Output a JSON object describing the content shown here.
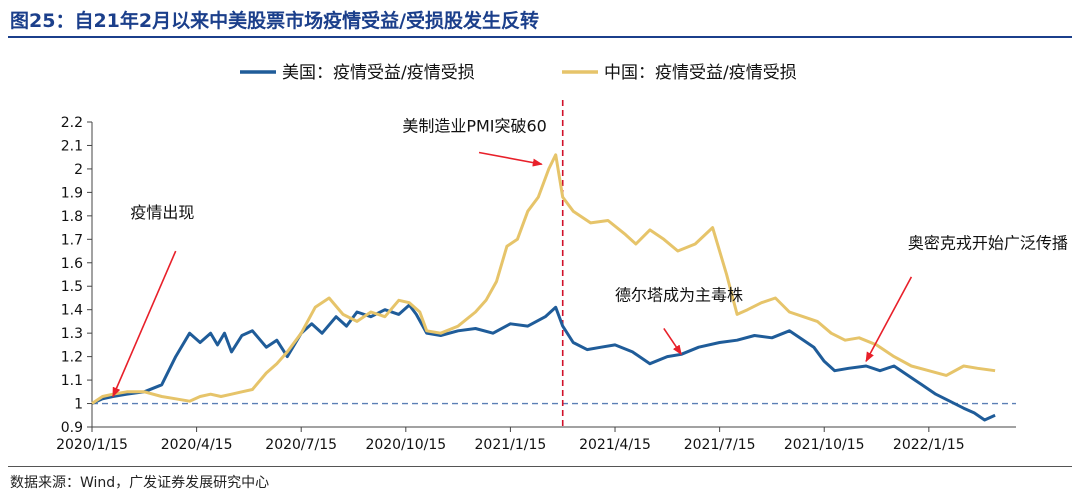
{
  "figure": {
    "title": "图25：自21年2月以来中美股票市场疫情受益/受损股发生反转",
    "source": "数据来源：Wind，广发证券发展研究中心"
  },
  "chart_data": {
    "type": "line",
    "title": "自21年2月以来中美股票市场疫情受益/受损股发生反转",
    "xlabel": "",
    "ylabel": "",
    "ylim": [
      0.9,
      2.2
    ],
    "yticks": [
      0.9,
      1,
      1.1,
      1.2,
      1.3,
      1.4,
      1.5,
      1.6,
      1.7,
      1.8,
      1.9,
      2,
      2.1,
      2.2
    ],
    "ytick_labels": [
      "0.9",
      "1",
      "1.1",
      "1.2",
      "1.3",
      "1.4",
      "1.5",
      "1.6",
      "1.7",
      "1.8",
      "1.9",
      "2",
      "2.1",
      "2.2"
    ],
    "xlim": [
      "2020-01-15",
      "2022-03-31"
    ],
    "xtick_labels": [
      "2020/1/15",
      "2020/4/15",
      "2020/7/15",
      "2020/10/15",
      "2021/1/15",
      "2021/4/15",
      "2021/7/15",
      "2021/10/15",
      "2022/1/15"
    ],
    "xtick_months": [
      0,
      3,
      6,
      9,
      12,
      15,
      18,
      21,
      24
    ],
    "legend_position": "top-center",
    "grid": false,
    "series": [
      {
        "name": "美国：疫情受益/疫情受损",
        "color": "#1f5c99",
        "x_months": [
          0,
          0.3,
          0.6,
          1,
          1.5,
          2,
          2.4,
          2.8,
          3.1,
          3.4,
          3.6,
          3.8,
          4.0,
          4.3,
          4.6,
          5,
          5.3,
          5.6,
          6,
          6.3,
          6.6,
          7,
          7.3,
          7.6,
          8,
          8.4,
          8.8,
          9.1,
          9.3,
          9.6,
          10,
          10.5,
          11,
          11.5,
          12,
          12.5,
          13,
          13.3,
          13.5,
          13.8,
          14.2,
          14.6,
          15,
          15.5,
          16,
          16.5,
          16.9,
          17.4,
          18,
          18.5,
          19,
          19.5,
          20,
          20.3,
          20.7,
          21,
          21.3,
          21.7,
          22.2,
          22.6,
          23,
          23.4,
          23.8,
          24.2,
          24.6,
          25,
          25.3,
          25.6,
          25.9
        ],
        "values": [
          1.0,
          1.02,
          1.03,
          1.04,
          1.05,
          1.08,
          1.2,
          1.3,
          1.26,
          1.3,
          1.25,
          1.3,
          1.22,
          1.29,
          1.31,
          1.24,
          1.27,
          1.2,
          1.3,
          1.34,
          1.3,
          1.37,
          1.33,
          1.39,
          1.37,
          1.4,
          1.38,
          1.42,
          1.38,
          1.3,
          1.29,
          1.31,
          1.32,
          1.3,
          1.34,
          1.33,
          1.37,
          1.41,
          1.33,
          1.26,
          1.23,
          1.24,
          1.25,
          1.22,
          1.17,
          1.2,
          1.21,
          1.24,
          1.26,
          1.27,
          1.29,
          1.28,
          1.31,
          1.28,
          1.24,
          1.18,
          1.14,
          1.15,
          1.16,
          1.14,
          1.16,
          1.12,
          1.08,
          1.04,
          1.01,
          0.98,
          0.96,
          0.93,
          0.95
        ]
      },
      {
        "name": "中国：疫情受益/疫情受损",
        "color": "#e6c46a",
        "x_months": [
          0,
          0.3,
          0.6,
          1,
          1.5,
          2,
          2.4,
          2.8,
          3.1,
          3.4,
          3.7,
          4.0,
          4.3,
          4.6,
          5,
          5.3,
          5.6,
          6,
          6.4,
          6.8,
          7.2,
          7.6,
          8,
          8.4,
          8.8,
          9.1,
          9.4,
          9.6,
          10,
          10.5,
          11,
          11.3,
          11.6,
          11.9,
          12.2,
          12.5,
          12.8,
          13.1,
          13.3,
          13.5,
          13.8,
          14.3,
          14.8,
          15.3,
          15.6,
          16,
          16.4,
          16.8,
          17.3,
          17.8,
          18.2,
          18.5,
          18.8,
          19.2,
          19.6,
          20,
          20.4,
          20.8,
          21.2,
          21.6,
          22,
          22.5,
          23,
          23.5,
          24,
          24.5,
          25,
          25.4,
          25.9
        ],
        "values": [
          1.0,
          1.03,
          1.04,
          1.05,
          1.05,
          1.03,
          1.02,
          1.01,
          1.03,
          1.04,
          1.03,
          1.04,
          1.05,
          1.06,
          1.13,
          1.17,
          1.22,
          1.3,
          1.41,
          1.45,
          1.38,
          1.35,
          1.39,
          1.37,
          1.44,
          1.43,
          1.39,
          1.31,
          1.3,
          1.33,
          1.39,
          1.44,
          1.52,
          1.67,
          1.7,
          1.82,
          1.88,
          2.0,
          2.06,
          1.88,
          1.82,
          1.77,
          1.78,
          1.72,
          1.68,
          1.74,
          1.7,
          1.65,
          1.68,
          1.75,
          1.55,
          1.38,
          1.4,
          1.43,
          1.45,
          1.39,
          1.37,
          1.35,
          1.3,
          1.27,
          1.28,
          1.25,
          1.2,
          1.16,
          1.14,
          1.12,
          1.16,
          1.15,
          1.14
        ]
      }
    ],
    "reference_lines": [
      {
        "type": "horizontal",
        "y": 1.0,
        "label": "",
        "color": "#5b7fb5",
        "dash": true
      },
      {
        "type": "vertical",
        "x_month": 13.5,
        "label": "",
        "color": "#d0102a",
        "dash": true
      }
    ],
    "annotations": [
      {
        "text": "疫情出现",
        "x_month": 1.1,
        "y": 1.79,
        "arrow_from": [
          2.4,
          1.65
        ],
        "arrow_to": [
          0.6,
          1.03
        ]
      },
      {
        "text": "美制造业PMI突破60",
        "x_month": 8.9,
        "y": 2.16,
        "arrow_from": [
          11.1,
          2.07
        ],
        "arrow_to": [
          12.9,
          2.02
        ]
      },
      {
        "text": "德尔塔成为主毒株",
        "x_month": 15.0,
        "y": 1.44,
        "arrow_from": [
          16.4,
          1.32
        ],
        "arrow_to": [
          16.9,
          1.21
        ]
      },
      {
        "text": "奥密克戎开始广泛传播",
        "x_month": 23.4,
        "y": 1.66,
        "arrow_from": [
          23.5,
          1.54
        ],
        "arrow_to": [
          22.2,
          1.18
        ]
      }
    ]
  }
}
